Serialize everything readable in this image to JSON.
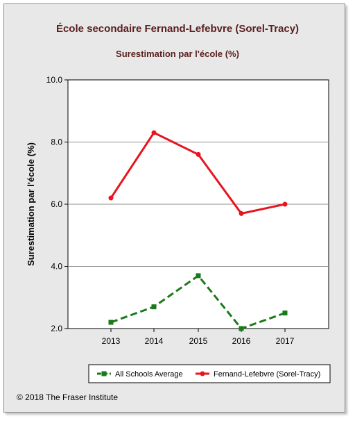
{
  "chart_data": {
    "type": "line",
    "title": "École secondaire Fernand-Lefebvre (Sorel-Tracy)",
    "subtitle": "Surestimation par l'école (%)",
    "xlabel": "",
    "ylabel": "Surestimation par l'école (%)",
    "x": [
      "2013",
      "2014",
      "2015",
      "2016",
      "2017"
    ],
    "ylim": [
      2.0,
      10.0
    ],
    "yticks": [
      "2.0",
      "4.0",
      "6.0",
      "8.0",
      "10.0"
    ],
    "grid": true,
    "legend_position": "bottom",
    "series": [
      {
        "name": "All Schools Average",
        "values": [
          2.2,
          2.7,
          3.7,
          2.0,
          2.5
        ],
        "color": "#1a7a1a",
        "dashed": true,
        "marker": "square"
      },
      {
        "name": "Fernand-Lefebvre (Sorel-Tracy)",
        "values": [
          6.2,
          8.3,
          7.6,
          5.7,
          6.0
        ],
        "color": "#e8141e",
        "dashed": false,
        "marker": "circle"
      }
    ]
  },
  "footer": {
    "copyright": "© 2018 The Fraser Institute"
  }
}
